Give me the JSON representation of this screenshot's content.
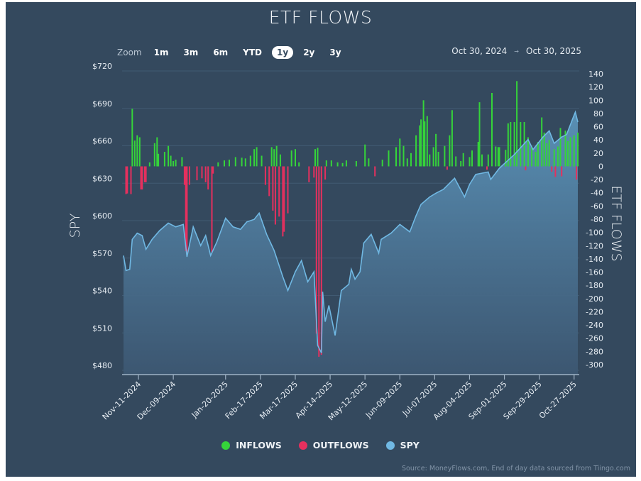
{
  "title": "ETF FLOWS",
  "range_selector": {
    "zoom_label": "Zoom",
    "buttons": [
      "1m",
      "3m",
      "6m",
      "YTD",
      "1y",
      "2y",
      "3y"
    ],
    "selected": "1y",
    "from": "Oct 30, 2024",
    "arrow": "→",
    "to": "Oct 30, 2025"
  },
  "legend": {
    "inflows": "INFLOWS",
    "outflows": "OUTFLOWS",
    "spy": "SPY"
  },
  "source": "Source: MoneyFlows.com, End of day data sourced from Tiingo.com",
  "colors": {
    "background": "#34495e",
    "inflows": "#35d43a",
    "outflows": "#e5305e",
    "spy": "#70b8e3"
  },
  "chart_data": {
    "type": "bar+area",
    "title": "ETF FLOWS",
    "y_left": {
      "label": "SPY",
      "ticks": [
        "$720",
        "$690",
        "$660",
        "$630",
        "$600",
        "$570",
        "$540",
        "$510",
        "$480"
      ],
      "range": [
        480,
        720
      ]
    },
    "y_right": {
      "label": "ETF FLOWS",
      "ticks": [
        "140",
        "120",
        "100",
        "80",
        "60",
        "40",
        "20",
        "0",
        "-20",
        "-40",
        "-60",
        "-80",
        "-100",
        "-120",
        "-140",
        "-160",
        "-180",
        "-200",
        "-220",
        "-240",
        "-260",
        "-280",
        "-300"
      ],
      "range": [
        -300,
        140
      ]
    },
    "x": {
      "range": [
        "2024-10-30",
        "2025-10-30"
      ],
      "ticks": [
        "Nov-11-2024",
        "Dec-09-2024",
        "Jan-20-2025",
        "Feb-17-2025",
        "Mar-17-2025",
        "Apr-14-2025",
        "May-12-2025",
        "Jun-09-2025",
        "Jul-07-2025",
        "Aug-04-2025",
        "Sep-01-2025",
        "Sep-29-2025",
        "Oct-27-2025"
      ]
    },
    "grid": true,
    "legend_position": "bottom",
    "spy": [
      [
        "2024-10-30",
        572
      ],
      [
        "2024-11-01",
        560
      ],
      [
        "2024-11-04",
        561
      ],
      [
        "2024-11-06",
        585
      ],
      [
        "2024-11-10",
        590
      ],
      [
        "2024-11-14",
        588
      ],
      [
        "2024-11-17",
        577
      ],
      [
        "2024-11-22",
        585
      ],
      [
        "2024-11-28",
        592
      ],
      [
        "2024-12-05",
        598
      ],
      [
        "2024-12-11",
        595
      ],
      [
        "2024-12-17",
        597
      ],
      [
        "2024-12-20",
        571
      ],
      [
        "2024-12-25",
        595
      ],
      [
        "2024-12-31",
        580
      ],
      [
        "2025-01-04",
        588
      ],
      [
        "2025-01-08",
        572
      ],
      [
        "2025-01-13",
        583
      ],
      [
        "2025-01-20",
        602
      ],
      [
        "2025-01-26",
        595
      ],
      [
        "2025-02-01",
        593
      ],
      [
        "2025-02-06",
        599
      ],
      [
        "2025-02-12",
        601
      ],
      [
        "2025-02-16",
        606
      ],
      [
        "2025-02-22",
        589
      ],
      [
        "2025-02-28",
        576
      ],
      [
        "2025-03-07",
        555
      ],
      [
        "2025-03-11",
        544
      ],
      [
        "2025-03-17",
        559
      ],
      [
        "2025-03-22",
        568
      ],
      [
        "2025-03-27",
        551
      ],
      [
        "2025-04-01",
        559
      ],
      [
        "2025-04-04",
        500
      ],
      [
        "2025-04-07",
        494
      ],
      [
        "2025-04-08",
        543
      ],
      [
        "2025-04-10",
        519
      ],
      [
        "2025-04-13",
        532
      ],
      [
        "2025-04-18",
        508
      ],
      [
        "2025-04-23",
        544
      ],
      [
        "2025-04-29",
        549
      ],
      [
        "2025-05-01",
        561
      ],
      [
        "2025-05-04",
        553
      ],
      [
        "2025-05-08",
        559
      ],
      [
        "2025-05-11",
        582
      ],
      [
        "2025-05-17",
        589
      ],
      [
        "2025-05-23",
        574
      ],
      [
        "2025-05-25",
        585
      ],
      [
        "2025-06-02",
        590
      ],
      [
        "2025-06-09",
        597
      ],
      [
        "2025-06-17",
        591
      ],
      [
        "2025-06-22",
        604
      ],
      [
        "2025-06-26",
        613
      ],
      [
        "2025-07-03",
        619
      ],
      [
        "2025-07-08",
        622
      ],
      [
        "2025-07-14",
        625
      ],
      [
        "2025-07-23",
        634
      ],
      [
        "2025-07-31",
        619
      ],
      [
        "2025-08-04",
        629
      ],
      [
        "2025-08-09",
        637
      ],
      [
        "2025-08-19",
        639
      ],
      [
        "2025-08-21",
        633
      ],
      [
        "2025-08-28",
        642
      ],
      [
        "2025-09-09",
        653
      ],
      [
        "2025-09-20",
        665
      ],
      [
        "2025-09-24",
        657
      ],
      [
        "2025-10-02",
        667
      ],
      [
        "2025-10-07",
        672
      ],
      [
        "2025-10-11",
        662
      ],
      [
        "2025-10-17",
        667
      ],
      [
        "2025-10-21",
        669
      ],
      [
        "2025-10-26",
        682
      ],
      [
        "2025-10-28",
        687
      ],
      [
        "2025-10-30",
        679
      ]
    ],
    "flows": [
      [
        "2024-11-01",
        -42
      ],
      [
        "2024-11-02",
        -41
      ],
      [
        "2024-11-05",
        -42
      ],
      [
        "2024-11-06",
        87
      ],
      [
        "2024-11-08",
        39
      ],
      [
        "2024-11-10",
        47
      ],
      [
        "2024-11-12",
        44
      ],
      [
        "2024-11-13",
        -35
      ],
      [
        "2024-11-14",
        -35
      ],
      [
        "2024-11-16",
        -24
      ],
      [
        "2024-11-17",
        -24
      ],
      [
        "2024-11-20",
        6
      ],
      [
        "2024-11-24",
        35
      ],
      [
        "2024-11-26",
        44
      ],
      [
        "2024-11-27",
        19
      ],
      [
        "2024-12-02",
        22
      ],
      [
        "2024-12-05",
        31
      ],
      [
        "2024-12-07",
        16
      ],
      [
        "2024-12-09",
        8
      ],
      [
        "2024-12-11",
        10
      ],
      [
        "2024-12-16",
        14
      ],
      [
        "2024-12-18",
        -28
      ],
      [
        "2024-12-19",
        -128
      ],
      [
        "2024-12-20",
        -131
      ],
      [
        "2024-12-22",
        -28
      ],
      [
        "2024-12-28",
        -21
      ],
      [
        "2025-01-01",
        -18
      ],
      [
        "2025-01-04",
        -24
      ],
      [
        "2025-01-06",
        -35
      ],
      [
        "2025-01-09",
        -130
      ],
      [
        "2025-01-10",
        -11
      ],
      [
        "2025-01-14",
        6
      ],
      [
        "2025-01-19",
        9
      ],
      [
        "2025-01-23",
        10
      ],
      [
        "2025-01-28",
        14
      ],
      [
        "2025-02-02",
        13
      ],
      [
        "2025-02-05",
        12
      ],
      [
        "2025-02-09",
        16
      ],
      [
        "2025-02-12",
        26
      ],
      [
        "2025-02-14",
        29
      ],
      [
        "2025-02-18",
        16
      ],
      [
        "2025-02-21",
        -28
      ],
      [
        "2025-02-24",
        -45
      ],
      [
        "2025-02-26",
        29
      ],
      [
        "2025-02-27",
        -67
      ],
      [
        "2025-02-28",
        26
      ],
      [
        "2025-03-01",
        -88
      ],
      [
        "2025-03-02",
        31
      ],
      [
        "2025-03-04",
        -76
      ],
      [
        "2025-03-05",
        18
      ],
      [
        "2025-03-07",
        -106
      ],
      [
        "2025-03-08",
        -99
      ],
      [
        "2025-03-11",
        -71
      ],
      [
        "2025-03-14",
        24
      ],
      [
        "2025-03-17",
        26
      ],
      [
        "2025-03-20",
        6
      ],
      [
        "2025-03-28",
        -24
      ],
      [
        "2025-04-01",
        -17
      ],
      [
        "2025-04-02",
        26
      ],
      [
        "2025-04-03",
        -253
      ],
      [
        "2025-04-04",
        28
      ],
      [
        "2025-04-05",
        -288
      ],
      [
        "2025-04-07",
        -285
      ],
      [
        "2025-04-10",
        -20
      ],
      [
        "2025-04-11",
        9
      ],
      [
        "2025-04-15",
        9
      ],
      [
        "2025-04-20",
        6
      ],
      [
        "2025-04-24",
        5
      ],
      [
        "2025-04-27",
        9
      ],
      [
        "2025-05-05",
        8
      ],
      [
        "2025-05-12",
        33
      ],
      [
        "2025-05-15",
        12
      ],
      [
        "2025-05-20",
        -15
      ],
      [
        "2025-05-26",
        10
      ],
      [
        "2025-05-31",
        24
      ],
      [
        "2025-06-06",
        29
      ],
      [
        "2025-06-09",
        42
      ],
      [
        "2025-06-12",
        31
      ],
      [
        "2025-06-15",
        12
      ],
      [
        "2025-06-18",
        20
      ],
      [
        "2025-06-22",
        47
      ],
      [
        "2025-06-25",
        62
      ],
      [
        "2025-06-26",
        71
      ],
      [
        "2025-06-28",
        100
      ],
      [
        "2025-06-29",
        68
      ],
      [
        "2025-07-01",
        76
      ],
      [
        "2025-07-03",
        18
      ],
      [
        "2025-07-06",
        29
      ],
      [
        "2025-07-08",
        49
      ],
      [
        "2025-07-10",
        22
      ],
      [
        "2025-07-15",
        31
      ],
      [
        "2025-07-17",
        -5
      ],
      [
        "2025-07-19",
        47
      ],
      [
        "2025-07-21",
        85
      ],
      [
        "2025-07-24",
        15
      ],
      [
        "2025-07-28",
        8
      ],
      [
        "2025-07-30",
        20
      ],
      [
        "2025-08-04",
        14
      ],
      [
        "2025-08-06",
        24
      ],
      [
        "2025-08-11",
        37
      ],
      [
        "2025-08-12",
        97
      ],
      [
        "2025-08-14",
        18
      ],
      [
        "2025-08-18",
        -5
      ],
      [
        "2025-08-19",
        18
      ],
      [
        "2025-08-22",
        111
      ],
      [
        "2025-08-25",
        30
      ],
      [
        "2025-08-27",
        29
      ],
      [
        "2025-08-28",
        29
      ],
      [
        "2025-09-02",
        25
      ],
      [
        "2025-09-04",
        65
      ],
      [
        "2025-09-06",
        67
      ],
      [
        "2025-09-09",
        67
      ],
      [
        "2025-09-11",
        129
      ],
      [
        "2025-09-14",
        67
      ],
      [
        "2025-09-17",
        67
      ],
      [
        "2025-09-18",
        -6
      ],
      [
        "2025-09-20",
        44
      ],
      [
        "2025-09-23",
        30
      ],
      [
        "2025-09-26",
        22
      ],
      [
        "2025-09-28",
        37
      ],
      [
        "2025-10-01",
        74
      ],
      [
        "2025-10-03",
        51
      ],
      [
        "2025-10-05",
        35
      ],
      [
        "2025-10-07",
        40
      ],
      [
        "2025-10-09",
        -8
      ],
      [
        "2025-10-11",
        26
      ],
      [
        "2025-10-12",
        -16
      ],
      [
        "2025-10-14",
        30
      ],
      [
        "2025-10-16",
        58
      ],
      [
        "2025-10-17",
        -15
      ],
      [
        "2025-10-20",
        54
      ],
      [
        "2025-10-22",
        38
      ],
      [
        "2025-10-24",
        44
      ],
      [
        "2025-10-27",
        47
      ],
      [
        "2025-10-29",
        -20
      ],
      [
        "2025-10-30",
        51
      ]
    ]
  }
}
